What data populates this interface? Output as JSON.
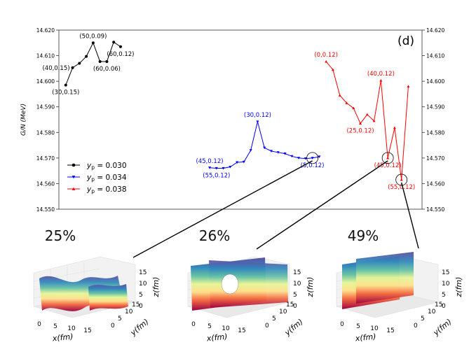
{
  "chart_data": {
    "type": "line",
    "panel_label": "(d)",
    "ylabel": "G/N (MeV)",
    "ylim": [
      14.55,
      14.62
    ],
    "ytick_labels": [
      "14.550",
      "14.560",
      "14.570",
      "14.580",
      "14.590",
      "14.600",
      "14.610",
      "14.620"
    ],
    "legend": [
      {
        "label_prefix": "y",
        "label_sub": "p",
        "label_value": " = 0.030",
        "marker": "circle",
        "color": "#000000"
      },
      {
        "label_prefix": "y",
        "label_sub": "p",
        "label_value": " = 0.034",
        "marker": "triangle-down",
        "color": "#0000ff"
      },
      {
        "label_prefix": "y",
        "label_sub": "p",
        "label_value": " = 0.038",
        "marker": "triangle-up",
        "color": "#ff0000"
      }
    ],
    "series": [
      {
        "name": "yp=0.030",
        "color": "#000000",
        "marker": "circle",
        "x": [
          1,
          2,
          3,
          4,
          5,
          6,
          7,
          8,
          9
        ],
        "values": [
          14.5985,
          14.6053,
          14.607,
          14.6097,
          14.615,
          14.6077,
          14.6077,
          14.6153,
          14.6135
        ]
      },
      {
        "name": "yp=0.034",
        "color": "#0000ff",
        "marker": "triangle-down",
        "x": [
          22,
          23,
          24,
          25,
          26,
          27,
          28,
          29,
          30,
          31,
          32,
          33,
          34,
          35,
          36,
          37,
          38
        ],
        "values": [
          14.5662,
          14.566,
          14.566,
          14.5665,
          14.5683,
          14.5685,
          14.573,
          14.5842,
          14.574,
          14.5727,
          14.5722,
          14.5717,
          14.5707,
          14.57,
          14.5698,
          14.57,
          14.5705
        ]
      },
      {
        "name": "yp=0.038",
        "color": "#ff0000",
        "marker": "triangle-up",
        "x": [
          39,
          40,
          41,
          42,
          43,
          44,
          45,
          46,
          47,
          48,
          49,
          50,
          51
        ],
        "values": [
          14.6077,
          14.6045,
          14.5945,
          14.5915,
          14.5895,
          14.5835,
          14.587,
          14.5845,
          14.6003,
          14.57,
          14.5818,
          14.5615,
          14.598
        ]
      }
    ],
    "point_annotations": [
      {
        "text": "(30,0.15)",
        "color": "#000000",
        "series": 0,
        "point": 0,
        "pos": "below"
      },
      {
        "text": "(40,0.15)",
        "color": "#000000",
        "series": 0,
        "point": 1,
        "pos": "left"
      },
      {
        "text": "(50,0.09)",
        "color": "#000000",
        "series": 0,
        "point": 4,
        "pos": "above"
      },
      {
        "text": "(60,0.06)",
        "color": "#000000",
        "series": 0,
        "point": 6,
        "pos": "below"
      },
      {
        "text": "(60,0.12)",
        "color": "#000000",
        "series": 0,
        "point": 8,
        "pos": "below"
      },
      {
        "text": "(30,0.12)",
        "color": "#0000ff",
        "series": 1,
        "point": 7,
        "pos": "above"
      },
      {
        "text": "(45,0.12)",
        "color": "#0000ff",
        "series": 1,
        "point": 0,
        "pos": "above"
      },
      {
        "text": "(55,0.12)",
        "color": "#0000ff",
        "series": 1,
        "point": 1,
        "pos": "below"
      },
      {
        "text": "(5,0.12)",
        "color": "#0000ff",
        "series": 1,
        "point": 15,
        "pos": "below"
      },
      {
        "text": "(0,0.12)",
        "color": "#ff0000",
        "series": 2,
        "point": 0,
        "pos": "above"
      },
      {
        "text": "(40,0.12)",
        "color": "#ff0000",
        "series": 2,
        "point": 8,
        "pos": "above"
      },
      {
        "text": "(25,0.12)",
        "color": "#ff0000",
        "series": 2,
        "point": 5,
        "pos": "below"
      },
      {
        "text": "(45,0.12)",
        "color": "#ff0000",
        "series": 2,
        "point": 9,
        "pos": "below"
      },
      {
        "text": "(55,0.12)",
        "color": "#ff0000",
        "series": 2,
        "point": 11,
        "pos": "below"
      }
    ],
    "circled_points": [
      {
        "series": 1,
        "point": 15
      },
      {
        "series": 2,
        "point": 9
      },
      {
        "series": 2,
        "point": 11
      }
    ]
  },
  "insets": [
    {
      "percent": "25%",
      "xlabel": "x(fm)",
      "ylabel": "y(fm)",
      "zlabel": "z(fm)",
      "x_ticks": [
        "0",
        "5",
        "10",
        "15"
      ],
      "y_ticks": [
        "0",
        "5",
        "10",
        "15"
      ],
      "z_ticks": [
        "0",
        "5",
        "10",
        "15"
      ],
      "link": {
        "series": 1,
        "point": 15
      }
    },
    {
      "percent": "26%",
      "xlabel": "x(fm)",
      "ylabel": "y(fm)",
      "zlabel": "z(fm)",
      "x_ticks": [
        "0",
        "5",
        "10",
        "15"
      ],
      "y_ticks": [
        "0",
        "5",
        "10",
        "15"
      ],
      "z_ticks": [
        "0",
        "5",
        "10",
        "15"
      ],
      "link": {
        "series": 2,
        "point": 9
      }
    },
    {
      "percent": "49%",
      "xlabel": "x(fm)",
      "ylabel": "y(fm)",
      "zlabel": "z(fm)",
      "x_ticks": [
        "0",
        "5",
        "10",
        "15"
      ],
      "y_ticks": [
        "0",
        "5",
        "10",
        "15"
      ],
      "z_ticks": [
        "0",
        "5",
        "10",
        "15"
      ],
      "link": {
        "series": 2,
        "point": 11
      }
    }
  ]
}
